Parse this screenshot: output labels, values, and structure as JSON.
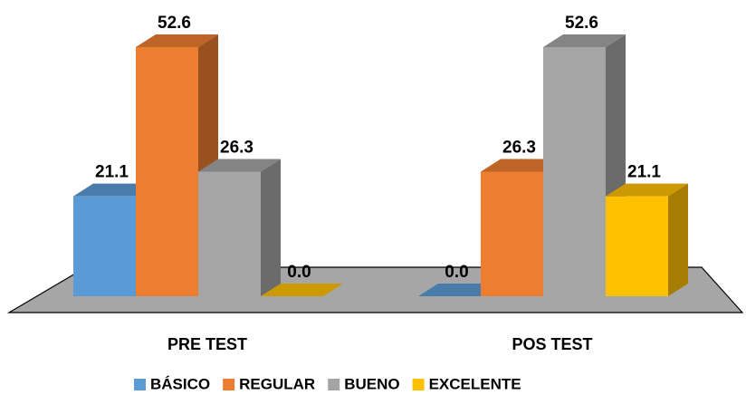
{
  "chart_data": {
    "type": "bar3d",
    "categories": [
      "PRE TEST",
      "POS TEST"
    ],
    "series": [
      {
        "name": "BÁSICO",
        "color": "#5b9bd5",
        "values": [
          21.1,
          0.0
        ],
        "value_labels": [
          "21.1",
          "0.0"
        ]
      },
      {
        "name": "REGULAR",
        "color": "#ed7d31",
        "values": [
          52.6,
          26.3
        ],
        "value_labels": [
          "52.6",
          "26.3"
        ]
      },
      {
        "name": "BUENO",
        "color": "#a5a5a5",
        "values": [
          26.3,
          52.6
        ],
        "value_labels": [
          "26.3",
          "52.6"
        ]
      },
      {
        "name": "EXCELENTE",
        "color": "#ffc000",
        "values": [
          0.0,
          21.1
        ],
        "value_labels": [
          "0.0",
          "21.1"
        ]
      }
    ],
    "legend": "bottom"
  }
}
